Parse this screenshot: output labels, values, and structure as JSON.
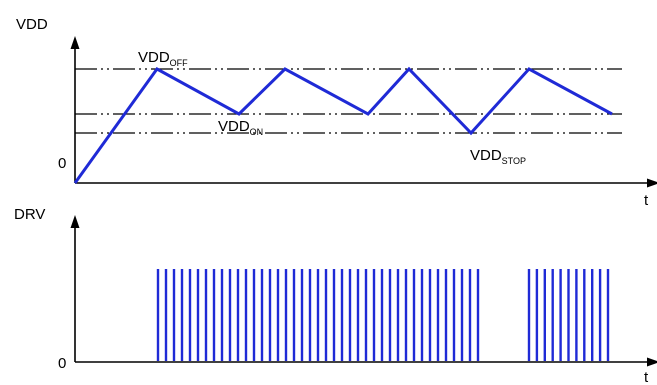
{
  "top_panel": {
    "y_label": "VDD",
    "x_label": "t",
    "origin_label": "0",
    "thresholds": {
      "off": {
        "main": "VDD",
        "sub": "OFF"
      },
      "on": {
        "main": "VDD",
        "sub": "ON"
      },
      "stop": {
        "main": "VDD",
        "sub": "STOP"
      }
    }
  },
  "bottom_panel": {
    "y_label": "DRV",
    "x_label": "t",
    "origin_label": "0"
  },
  "colors": {
    "waveform": "#1f2ad6",
    "axes": "#000000"
  }
}
